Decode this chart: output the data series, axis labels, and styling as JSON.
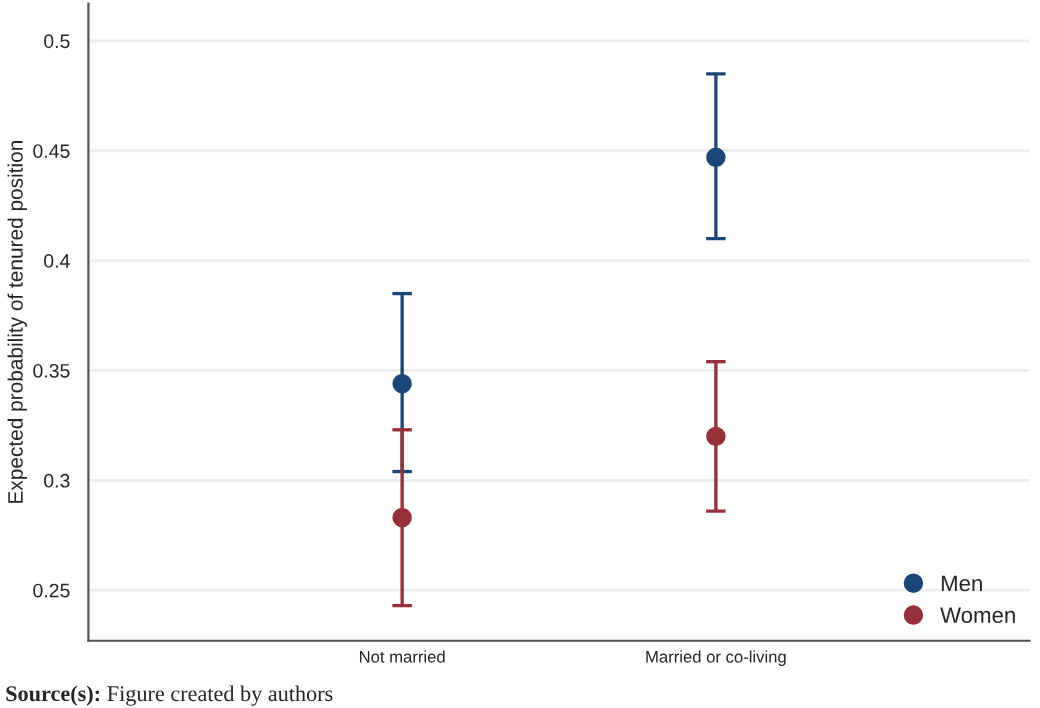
{
  "chart_data": {
    "type": "scatter",
    "ylabel": "Expected probability of tenured position",
    "categories": [
      "Not married",
      "Married or co-living"
    ],
    "series": [
      {
        "name": "Men",
        "color": "#1a4778",
        "values": [
          0.344,
          0.447
        ],
        "errors": [
          [
            0.304,
            0.385
          ],
          [
            0.41,
            0.485
          ]
        ]
      },
      {
        "name": "Women",
        "color": "#97303a",
        "values": [
          0.283,
          0.32
        ],
        "errors": [
          [
            0.243,
            0.323
          ],
          [
            0.286,
            0.354
          ]
        ]
      }
    ],
    "ylim": [
      0.227,
      0.517
    ],
    "yticks": [
      0.25,
      0.3,
      0.35,
      0.4,
      0.45,
      0.5
    ],
    "grid": "y",
    "legend": "bottom right",
    "marker": "circle",
    "annotations": [
      "Source(s): Figure created by authors"
    ]
  }
}
